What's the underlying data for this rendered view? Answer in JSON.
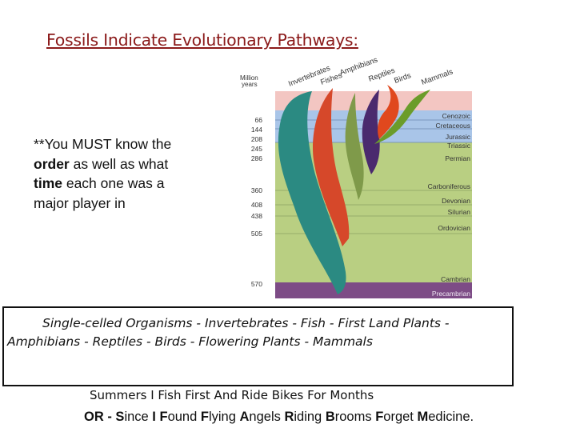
{
  "title": "Fossils Indicate Evolutionary Pathways:",
  "note": {
    "line1": "**You MUST know the",
    "order_word": "order",
    "line2_rest": " as well as what",
    "time_word": "time",
    "line3_rest": " each one was a",
    "line4": "major player in"
  },
  "figure": {
    "axis_label_line1": "Million",
    "axis_label_line2": "years",
    "groups": [
      "Invertebrates",
      "Fishes",
      "Amphibians",
      "Reptiles",
      "Birds",
      "Mammals"
    ],
    "periods": [
      {
        "mya": "66",
        "name": "Cenozoic"
      },
      {
        "mya": "144",
        "name": "Cretaceous"
      },
      {
        "mya": "208",
        "name": "Jurassic"
      },
      {
        "mya": "245",
        "name": "Triassic"
      },
      {
        "mya": "286",
        "name": "Permian"
      },
      {
        "mya": "360",
        "name": "Carboniferous"
      },
      {
        "mya": "408",
        "name": "Devonian"
      },
      {
        "mya": "438",
        "name": "Silurian"
      },
      {
        "mya": "505",
        "name": "Ordovician"
      },
      {
        "mya": "570",
        "name": "Cambrian"
      },
      {
        "mya": "",
        "name": "Precambrian"
      }
    ],
    "colors": {
      "cenozoic": "#f3c6c2",
      "mesozoic": "#a9c5e8",
      "paleozoic": "#b9cf82",
      "precambrian": "#7d4c86",
      "invertebrates": "#2b8a82",
      "fishes": "#d6482a",
      "amphibians": "#7f9a4a",
      "reptiles": "#4a2a6e",
      "birds": "#e0481e",
      "mammals": "#6b9c2a"
    }
  },
  "sequence_text": "Single-celled Organisms - Invertebrates - Fish - First Land Plants - Amphibians - Reptiles - Birds - Flowering Plants - Mammals",
  "mnemonic1": "Summers I Fish First And Ride Bikes For Months",
  "mnemonic2": {
    "prefix": "OR - ",
    "words": [
      {
        "first": "S",
        "rest": "ince "
      },
      {
        "first": "I",
        "rest": " "
      },
      {
        "first": "F",
        "rest": "ound "
      },
      {
        "first": "F",
        "rest": "lying "
      },
      {
        "first": "A",
        "rest": "ngels "
      },
      {
        "first": "R",
        "rest": "iding "
      },
      {
        "first": "B",
        "rest": "rooms "
      },
      {
        "first": "F",
        "rest": "orget "
      },
      {
        "first": "M",
        "rest": "edicine."
      }
    ]
  }
}
